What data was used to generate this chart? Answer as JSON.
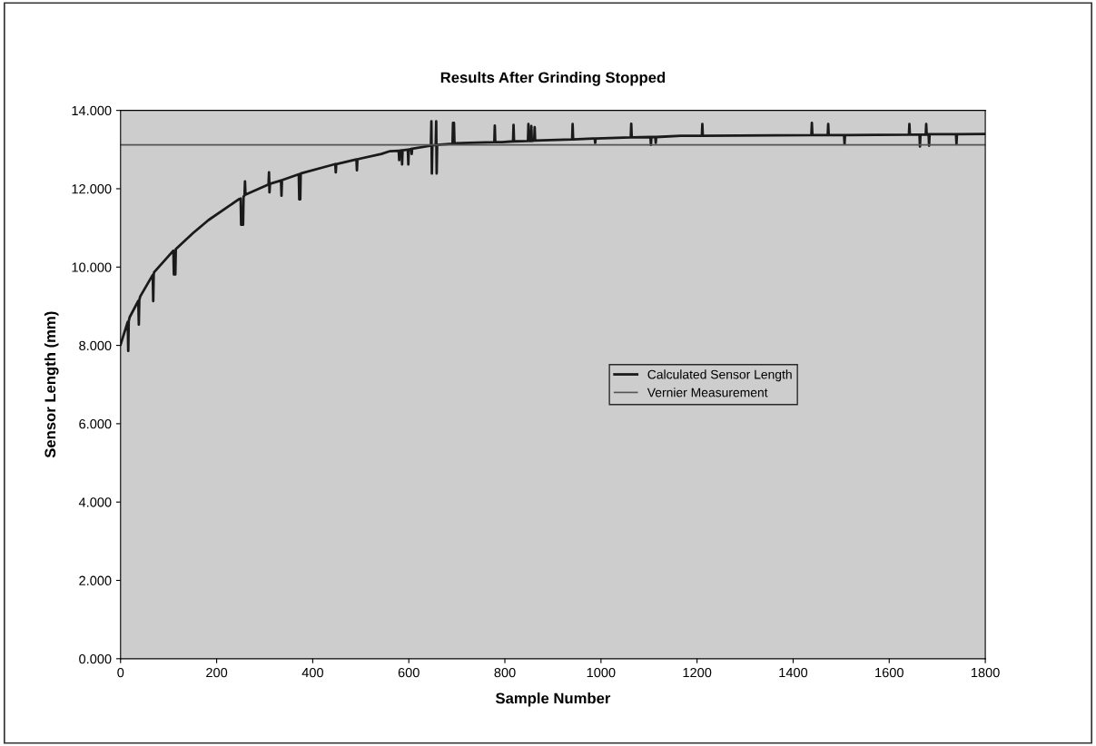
{
  "chart_data": {
    "type": "line",
    "title": "Results After Grinding Stopped",
    "xlabel": "Sample Number",
    "ylabel": "Sensor Length (mm)",
    "xlim": [
      0,
      1800
    ],
    "xticks": [
      0,
      200,
      400,
      600,
      800,
      1000,
      1200,
      1400,
      1600,
      1800
    ],
    "ylim": [
      0,
      14
    ],
    "yticks": [
      {
        "value": 0,
        "label": "0.000"
      },
      {
        "value": 2,
        "label": "2.000"
      },
      {
        "value": 4,
        "label": "4.000"
      },
      {
        "value": 6,
        "label": "6.000"
      },
      {
        "value": 8,
        "label": "8.000"
      },
      {
        "value": 10,
        "label": "10.000"
      },
      {
        "value": 12,
        "label": "12.000"
      },
      {
        "value": 14,
        "label": "14.000"
      }
    ],
    "grid": false,
    "legend": "center right",
    "marker": "none",
    "series": [
      {
        "name": "Calculated Sensor Length",
        "color": "#1a1a1a",
        "x": [
          0,
          15,
          16,
          17,
          19,
          37,
          38,
          39,
          41,
          67,
          68,
          69,
          70,
          110,
          111,
          114,
          115,
          151,
          183,
          246,
          250,
          251,
          255,
          256,
          258,
          259,
          260,
          308,
          309,
          310,
          311,
          312,
          334,
          335,
          336,
          371,
          372,
          374,
          375,
          435,
          447,
          448,
          449,
          491,
          492,
          493,
          499,
          543,
          561,
          579,
          580,
          581,
          585,
          586,
          587,
          598,
          599,
          600,
          605,
          606,
          607,
          646,
          647,
          648,
          649,
          656,
          657,
          658,
          659,
          691,
          692,
          694,
          695,
          778,
          779,
          780,
          794,
          817,
          818,
          819,
          848,
          849,
          850,
          854,
          855,
          856,
          861,
          862,
          863,
          940,
          941,
          942,
          983,
          987,
          988,
          989,
          1062,
          1063,
          1064,
          1103,
          1104,
          1105,
          1113,
          1114,
          1115,
          1166,
          1210,
          1211,
          1212,
          1438,
          1439,
          1440,
          1463,
          1472,
          1473,
          1474,
          1506,
          1507,
          1508,
          1641,
          1642,
          1643,
          1663,
          1664,
          1665,
          1676,
          1677,
          1678,
          1682,
          1683,
          1684,
          1739,
          1740,
          1741,
          1800
        ],
        "values": [
          8.02,
          8.6,
          7.86,
          8.62,
          8.72,
          9.14,
          8.53,
          9.16,
          9.25,
          9.8,
          9.13,
          9.82,
          9.87,
          10.42,
          9.81,
          9.81,
          10.46,
          10.87,
          11.2,
          11.73,
          11.75,
          11.08,
          11.08,
          11.8,
          11.83,
          12.19,
          11.85,
          12.11,
          12.42,
          11.91,
          12.12,
          12.13,
          12.21,
          11.82,
          12.22,
          12.37,
          11.73,
          11.73,
          12.39,
          12.59,
          12.63,
          12.42,
          12.63,
          12.75,
          12.47,
          12.75,
          12.77,
          12.89,
          12.96,
          12.97,
          12.73,
          12.97,
          12.98,
          12.62,
          12.98,
          13.0,
          12.62,
          13.0,
          13.02,
          12.89,
          13.02,
          13.1,
          13.72,
          12.39,
          13.1,
          13.12,
          13.72,
          12.39,
          13.12,
          13.15,
          13.68,
          13.68,
          13.16,
          13.19,
          13.61,
          13.19,
          13.19,
          13.21,
          13.63,
          13.21,
          13.22,
          13.65,
          13.22,
          13.22,
          13.6,
          13.22,
          13.23,
          13.57,
          13.23,
          13.26,
          13.65,
          13.26,
          13.28,
          13.28,
          13.17,
          13.28,
          13.31,
          13.66,
          13.31,
          13.32,
          13.12,
          13.32,
          13.32,
          13.17,
          13.32,
          13.35,
          13.35,
          13.65,
          13.35,
          13.37,
          13.68,
          13.37,
          13.37,
          13.37,
          13.65,
          13.37,
          13.37,
          13.14,
          13.37,
          13.38,
          13.65,
          13.38,
          13.38,
          13.08,
          13.38,
          13.38,
          13.65,
          13.38,
          13.39,
          13.1,
          13.39,
          13.39,
          13.14,
          13.39,
          13.4
        ]
      },
      {
        "name": "Vernier Measurement",
        "color": "#555555",
        "x": [
          0,
          1800
        ],
        "values": [
          13.12,
          13.12
        ]
      }
    ]
  }
}
